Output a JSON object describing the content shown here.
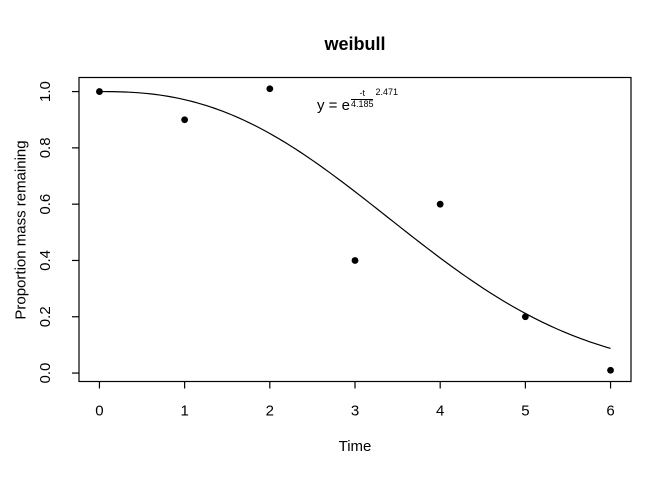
{
  "page": {
    "background": "#ffffff",
    "foreground": "#000000"
  },
  "chart_data": {
    "type": "scatter",
    "title": "weibull",
    "xlabel": "Time",
    "ylabel": "Proportion mass remaining",
    "x": [
      0,
      1,
      2,
      3,
      4,
      5,
      6
    ],
    "y": [
      1.0,
      0.9,
      1.01,
      0.4,
      0.6,
      0.2,
      0.01
    ],
    "x_ticks": [
      "0",
      "1",
      "2",
      "3",
      "4",
      "5",
      "6"
    ],
    "y_ticks": [
      "0.0",
      "0.2",
      "0.4",
      "0.6",
      "0.8",
      "1.0"
    ],
    "xlim": [
      -0.24,
      6.24
    ],
    "ylim": [
      -0.03,
      1.05
    ],
    "grid": false,
    "legend": null,
    "marker_color": "#000000",
    "curve_color": "#000000",
    "fit": {
      "model": "weibull-decay",
      "formula": "y = exp(-(t/4.185)^2.471)",
      "scale": 4.185,
      "shape": 2.471,
      "t_min": 0,
      "t_max": 6
    },
    "equation": {
      "lhs": "y = e",
      "numerator": "-t",
      "denominator": "4.185",
      "exponent": "2.471"
    }
  }
}
